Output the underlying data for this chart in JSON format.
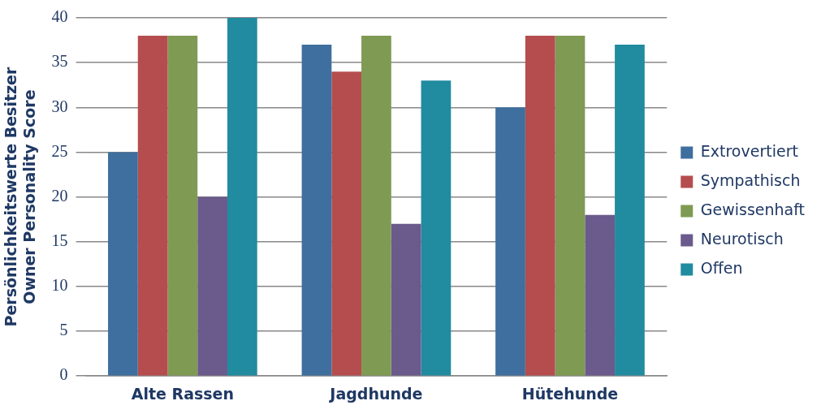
{
  "chart_data": {
    "type": "bar",
    "ylabel": "Persönlichkeitswerte Besitzer\nOwner Personality Score",
    "categories": [
      "Alte Rassen",
      "Jagdhunde",
      "Hütehunde"
    ],
    "series": [
      {
        "name": "Extrovertiert",
        "color": "#3e6f9e",
        "values": [
          25,
          37,
          30
        ]
      },
      {
        "name": "Sympathisch",
        "color": "#b54d4e",
        "values": [
          38,
          34,
          38
        ]
      },
      {
        "name": "Gewissenhaft",
        "color": "#7f9a52",
        "values": [
          38,
          38,
          38
        ]
      },
      {
        "name": "Neurotisch",
        "color": "#6b5a8c",
        "values": [
          20,
          17,
          18
        ]
      },
      {
        "name": "Offen",
        "color": "#218ba0",
        "values": [
          40,
          33,
          37
        ]
      }
    ],
    "ylim": [
      0,
      40
    ],
    "yticks": [
      0,
      5,
      10,
      15,
      20,
      25,
      30,
      35,
      40
    ],
    "grid": "y",
    "legend": "right"
  }
}
